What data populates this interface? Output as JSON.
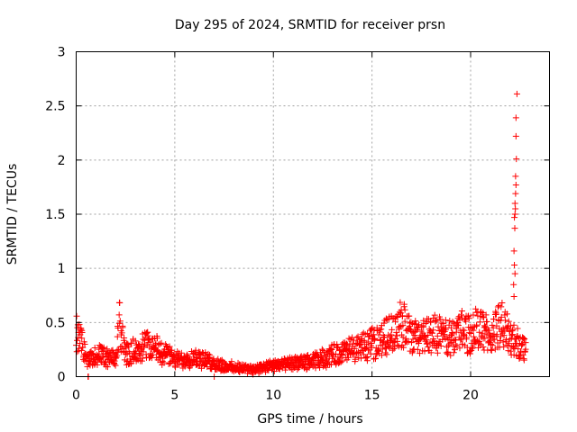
{
  "chart_data": {
    "type": "scatter",
    "title": "Day 295 of 2024, SRMTID for receiver prsn",
    "xlabel": "GPS time / hours",
    "ylabel": "SRMTID / TECUs",
    "xlim": [
      0,
      24
    ],
    "ylim": [
      0,
      3
    ],
    "xticks": [
      0,
      5,
      10,
      15,
      20
    ],
    "yticks": [
      0,
      0.5,
      1,
      1.5,
      2,
      2.5,
      3
    ],
    "xtick_labels": [
      "0",
      "5",
      "10",
      "15",
      "20"
    ],
    "ytick_labels": [
      "0",
      "0.5",
      "1",
      "1.5",
      "2",
      "2.5",
      "3"
    ],
    "grid": true,
    "marker": "plus",
    "color": "#ff0000",
    "series": [
      {
        "name": "SRMTID",
        "profile_x": [
          0,
          0.3,
          0.6,
          1,
          2,
          2.2,
          2.5,
          3.5,
          4.5,
          5,
          6,
          7,
          8,
          9,
          10,
          11,
          12,
          13,
          14,
          15,
          16,
          16.5,
          17,
          18,
          19,
          19.5,
          20,
          20.5,
          21,
          21.5,
          22,
          22.5,
          22.8
        ],
        "profile_y": [
          0.4,
          0.3,
          0.15,
          0.2,
          0.15,
          0.5,
          0.2,
          0.3,
          0.22,
          0.15,
          0.18,
          0.12,
          0.08,
          0.07,
          0.1,
          0.12,
          0.14,
          0.2,
          0.25,
          0.3,
          0.4,
          0.5,
          0.35,
          0.4,
          0.35,
          0.45,
          0.4,
          0.45,
          0.35,
          0.5,
          0.35,
          0.3,
          0.25
        ],
        "spikes": [
          {
            "x": 22.35,
            "y": 2.61
          },
          {
            "x": 22.3,
            "y": 2.39
          },
          {
            "x": 22.3,
            "y": 2.22
          },
          {
            "x": 22.32,
            "y": 2.01
          },
          {
            "x": 22.28,
            "y": 1.85
          },
          {
            "x": 22.3,
            "y": 1.77
          },
          {
            "x": 22.28,
            "y": 1.69
          },
          {
            "x": 22.25,
            "y": 1.6
          },
          {
            "x": 22.27,
            "y": 1.55
          },
          {
            "x": 22.25,
            "y": 1.5
          },
          {
            "x": 22.22,
            "y": 1.47
          },
          {
            "x": 22.24,
            "y": 1.37
          },
          {
            "x": 22.2,
            "y": 1.16
          },
          {
            "x": 22.22,
            "y": 1.03
          },
          {
            "x": 22.25,
            "y": 0.95
          },
          {
            "x": 22.18,
            "y": 0.85
          },
          {
            "x": 22.2,
            "y": 0.74
          },
          {
            "x": 0.6,
            "y": 0.0
          },
          {
            "x": 0.62,
            "y": 0.0
          },
          {
            "x": 7.0,
            "y": 0.0
          }
        ]
      }
    ]
  }
}
